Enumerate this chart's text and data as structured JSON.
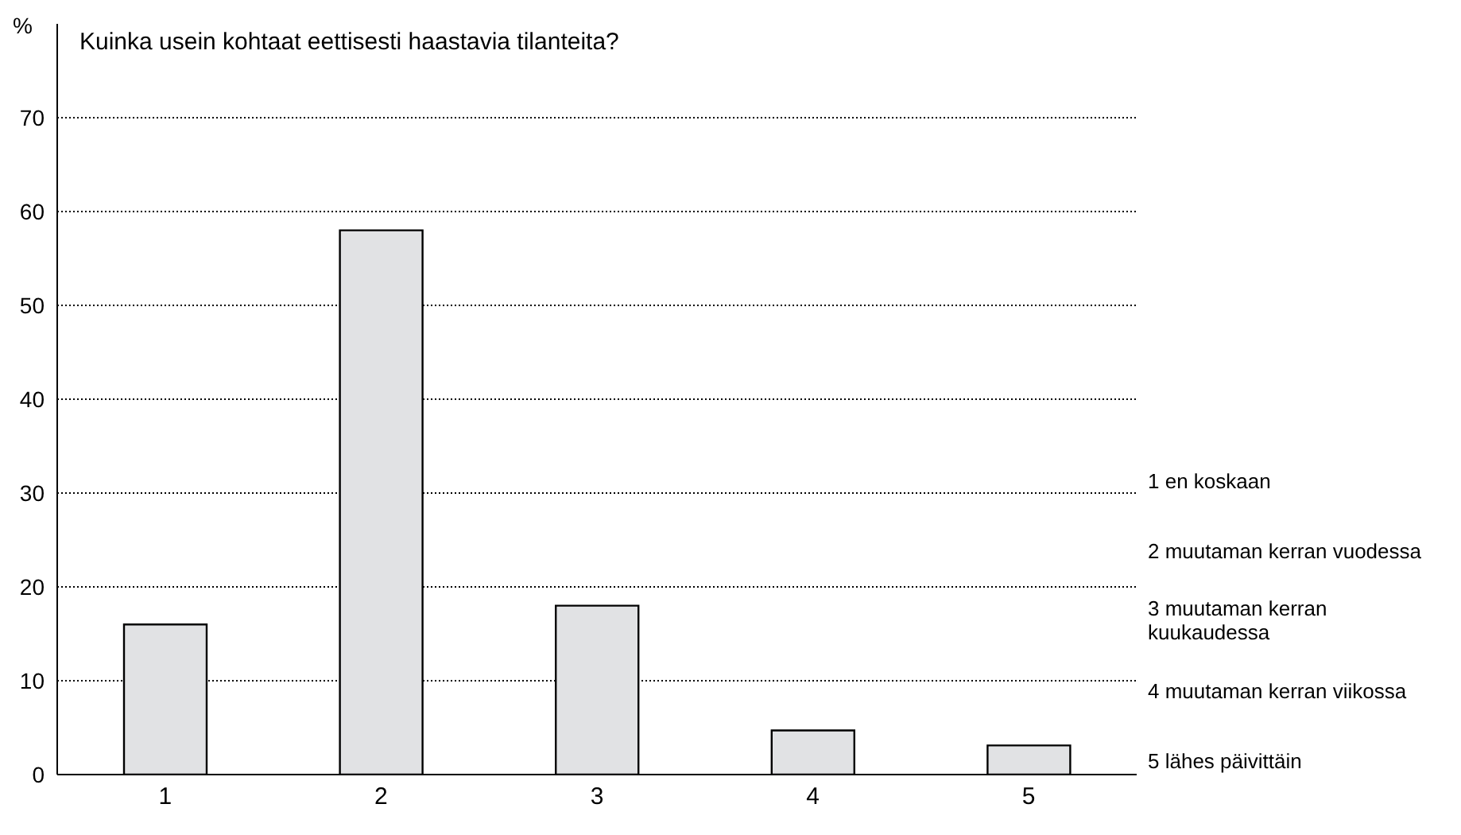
{
  "chart_data": {
    "type": "bar",
    "title": "Kuinka usein kohtaat eettisesti haastavia tilanteita?",
    "ylabel": "%",
    "categories": [
      "1",
      "2",
      "3",
      "4",
      "5"
    ],
    "values": [
      16,
      58,
      18,
      4.7,
      3.1
    ],
    "color": "#e1e2e4",
    "ylim": [
      0,
      80
    ],
    "yticks": [
      0,
      10,
      20,
      30,
      40,
      50,
      60,
      70
    ],
    "grid": "y",
    "annotations": [
      "1 en koskaan",
      "2 muutaman kerran vuodessa",
      "3 muutaman kerran kuukaudessa",
      "4 muutaman kerran viikossa",
      "5 lähes päivittäin"
    ]
  }
}
